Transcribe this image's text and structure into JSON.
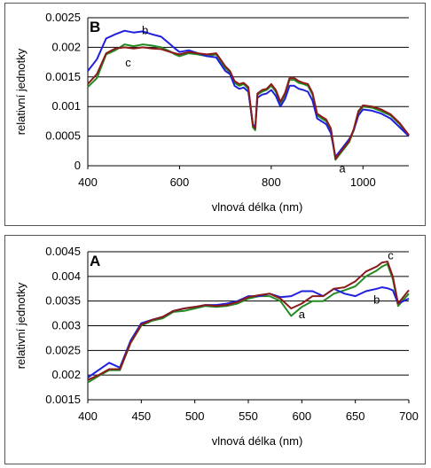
{
  "colors": {
    "a": "#228b22",
    "b": "#1f1fe0",
    "c": "#8b1a1a",
    "grid": "#000000"
  },
  "chart_data": [
    {
      "type": "line",
      "panel_label": "B",
      "xlabel": "vlnová délka (nm)",
      "ylabel": "relativní jednotky",
      "xlim": [
        400,
        1100
      ],
      "ylim": [
        0,
        0.0025
      ],
      "x_ticks": [
        400,
        600,
        800,
        1000
      ],
      "y_ticks": [
        0,
        0.0005,
        0.001,
        0.0015,
        0.002,
        0.0025
      ],
      "y_tick_labels": [
        "0",
        "0.0005",
        "0.001",
        "0.0015",
        "0.002",
        "0.0025"
      ],
      "grid": "horizontal",
      "annotations": [
        {
          "text": "b",
          "x": 525,
          "y": 0.00222
        },
        {
          "text": "c",
          "x": 488,
          "y": 0.00168
        },
        {
          "text": "a",
          "x": 955,
          "y": -0.00011
        }
      ],
      "series": [
        {
          "name": "a",
          "color_key": "a",
          "x": [
            400,
            420,
            440,
            460,
            480,
            500,
            520,
            540,
            560,
            580,
            590,
            600,
            620,
            640,
            660,
            680,
            700,
            710,
            720,
            730,
            740,
            750,
            760,
            765,
            770,
            780,
            790,
            800,
            810,
            820,
            830,
            840,
            850,
            860,
            870,
            880,
            890,
            900,
            910,
            920,
            930,
            940,
            950,
            960,
            970,
            980,
            990,
            1000,
            1020,
            1040,
            1060,
            1080,
            1100
          ],
          "y": [
            0.00133,
            0.00148,
            0.00188,
            0.00195,
            0.00205,
            0.00202,
            0.00205,
            0.00203,
            0.002,
            0.00193,
            0.00188,
            0.00185,
            0.0019,
            0.00188,
            0.00185,
            0.00188,
            0.00165,
            0.00158,
            0.0014,
            0.00135,
            0.00138,
            0.0013,
            0.00065,
            0.0006,
            0.0012,
            0.00125,
            0.00128,
            0.00135,
            0.00125,
            0.00105,
            0.0012,
            0.00145,
            0.00145,
            0.0014,
            0.00138,
            0.00135,
            0.0012,
            0.00085,
            0.0008,
            0.00075,
            0.0006,
            0.0001,
            0.0002,
            0.0003,
            0.0004,
            0.0006,
            0.0009,
            0.001,
            0.00098,
            0.00092,
            0.00085,
            0.0007,
            0.0005
          ]
        },
        {
          "name": "b",
          "color_key": "b",
          "x": [
            400,
            420,
            440,
            460,
            480,
            500,
            520,
            540,
            560,
            580,
            590,
            600,
            620,
            640,
            660,
            680,
            700,
            710,
            720,
            730,
            740,
            750,
            760,
            765,
            770,
            780,
            790,
            800,
            810,
            820,
            830,
            840,
            850,
            860,
            870,
            880,
            890,
            900,
            910,
            920,
            930,
            940,
            950,
            960,
            970,
            980,
            990,
            1000,
            1020,
            1040,
            1060,
            1080,
            1100
          ],
          "y": [
            0.0016,
            0.0018,
            0.00215,
            0.00222,
            0.00228,
            0.00225,
            0.00227,
            0.00222,
            0.00218,
            0.00205,
            0.00198,
            0.00192,
            0.00195,
            0.0019,
            0.00185,
            0.00183,
            0.0016,
            0.00155,
            0.00135,
            0.0013,
            0.00132,
            0.00125,
            0.0007,
            0.00065,
            0.00115,
            0.0012,
            0.00122,
            0.00128,
            0.00118,
            0.001,
            0.00113,
            0.00135,
            0.00135,
            0.0013,
            0.00128,
            0.00125,
            0.0011,
            0.0008,
            0.00075,
            0.0007,
            0.00055,
            0.00015,
            0.00025,
            0.00035,
            0.00045,
            0.0006,
            0.00085,
            0.00095,
            0.00093,
            0.00088,
            0.0008,
            0.00065,
            0.0005
          ]
        },
        {
          "name": "c",
          "color_key": "c",
          "x": [
            400,
            420,
            440,
            460,
            480,
            500,
            520,
            540,
            560,
            580,
            590,
            600,
            620,
            640,
            660,
            680,
            700,
            710,
            720,
            730,
            740,
            750,
            760,
            765,
            770,
            780,
            790,
            800,
            810,
            820,
            830,
            840,
            850,
            860,
            870,
            880,
            890,
            900,
            910,
            920,
            930,
            940,
            950,
            960,
            970,
            980,
            990,
            1000,
            1020,
            1040,
            1060,
            1080,
            1100
          ],
          "y": [
            0.00138,
            0.00155,
            0.0019,
            0.00198,
            0.002,
            0.00198,
            0.002,
            0.00198,
            0.00197,
            0.00192,
            0.0019,
            0.00188,
            0.00192,
            0.0019,
            0.00188,
            0.0019,
            0.00168,
            0.0016,
            0.00143,
            0.00138,
            0.0014,
            0.00133,
            0.00068,
            0.00063,
            0.00122,
            0.00128,
            0.0013,
            0.00138,
            0.00128,
            0.00108,
            0.00123,
            0.00148,
            0.00148,
            0.00143,
            0.0014,
            0.00138,
            0.00123,
            0.00088,
            0.00083,
            0.00078,
            0.00063,
            0.00012,
            0.00022,
            0.00032,
            0.00042,
            0.00062,
            0.00092,
            0.00102,
            0.001,
            0.00095,
            0.00087,
            0.00072,
            0.00052
          ]
        }
      ]
    },
    {
      "type": "line",
      "panel_label": "A",
      "xlabel": "vlnová délka (nm)",
      "ylabel": "relativní jednotky",
      "xlim": [
        400,
        700
      ],
      "ylim": [
        0.0015,
        0.0045
      ],
      "x_ticks": [
        400,
        450,
        500,
        550,
        600,
        650,
        700
      ],
      "y_ticks": [
        0.0015,
        0.002,
        0.0025,
        0.003,
        0.0035,
        0.004,
        0.0045
      ],
      "y_tick_labels": [
        "0.0015",
        "0.002",
        "0.0025",
        "0.003",
        "0.0035",
        "0.004",
        "0.0045"
      ],
      "grid": "horizontal",
      "annotations": [
        {
          "text": "c",
          "x": 683,
          "y": 0.00435
        },
        {
          "text": "b",
          "x": 670,
          "y": 0.00345
        },
        {
          "text": "a",
          "x": 600,
          "y": 0.00315
        }
      ],
      "series": [
        {
          "name": "a",
          "color_key": "a",
          "x": [
            400,
            410,
            420,
            430,
            440,
            450,
            460,
            470,
            480,
            490,
            500,
            510,
            520,
            530,
            540,
            550,
            560,
            570,
            580,
            590,
            600,
            610,
            620,
            630,
            640,
            650,
            660,
            670,
            675,
            680,
            685,
            690,
            700
          ],
          "y": [
            0.00185,
            0.00198,
            0.0021,
            0.0021,
            0.00265,
            0.003,
            0.0031,
            0.00315,
            0.00328,
            0.0033,
            0.00335,
            0.0034,
            0.00338,
            0.0034,
            0.00345,
            0.00355,
            0.0036,
            0.0036,
            0.0035,
            0.0032,
            0.00338,
            0.0035,
            0.0035,
            0.00365,
            0.00372,
            0.0038,
            0.004,
            0.00412,
            0.0042,
            0.00425,
            0.00395,
            0.0034,
            0.00365
          ]
        },
        {
          "name": "b",
          "color_key": "b",
          "x": [
            400,
            410,
            420,
            430,
            440,
            450,
            460,
            470,
            480,
            490,
            500,
            510,
            520,
            530,
            540,
            550,
            560,
            570,
            580,
            590,
            600,
            610,
            620,
            630,
            640,
            650,
            660,
            670,
            675,
            680,
            685,
            690,
            700
          ],
          "y": [
            0.00195,
            0.0021,
            0.00225,
            0.00215,
            0.0027,
            0.00305,
            0.00312,
            0.00318,
            0.0033,
            0.00335,
            0.00338,
            0.00342,
            0.00342,
            0.00345,
            0.0035,
            0.0036,
            0.0036,
            0.00365,
            0.00358,
            0.0036,
            0.0037,
            0.0037,
            0.0036,
            0.00375,
            0.00365,
            0.0036,
            0.0037,
            0.00375,
            0.00378,
            0.00376,
            0.00372,
            0.00345,
            0.00355
          ]
        },
        {
          "name": "c",
          "color_key": "c",
          "x": [
            400,
            410,
            420,
            430,
            440,
            450,
            460,
            470,
            480,
            490,
            500,
            510,
            520,
            530,
            540,
            550,
            560,
            570,
            580,
            590,
            600,
            610,
            620,
            630,
            640,
            650,
            660,
            670,
            675,
            680,
            685,
            690,
            700
          ],
          "y": [
            0.0019,
            0.002,
            0.00212,
            0.00212,
            0.00266,
            0.00302,
            0.00312,
            0.00318,
            0.0033,
            0.00335,
            0.00338,
            0.00342,
            0.0034,
            0.00342,
            0.00348,
            0.00358,
            0.00362,
            0.00365,
            0.00355,
            0.00335,
            0.00345,
            0.0036,
            0.0036,
            0.00375,
            0.00378,
            0.0039,
            0.0041,
            0.0042,
            0.00428,
            0.0043,
            0.004,
            0.00345,
            0.00372
          ]
        }
      ]
    }
  ]
}
